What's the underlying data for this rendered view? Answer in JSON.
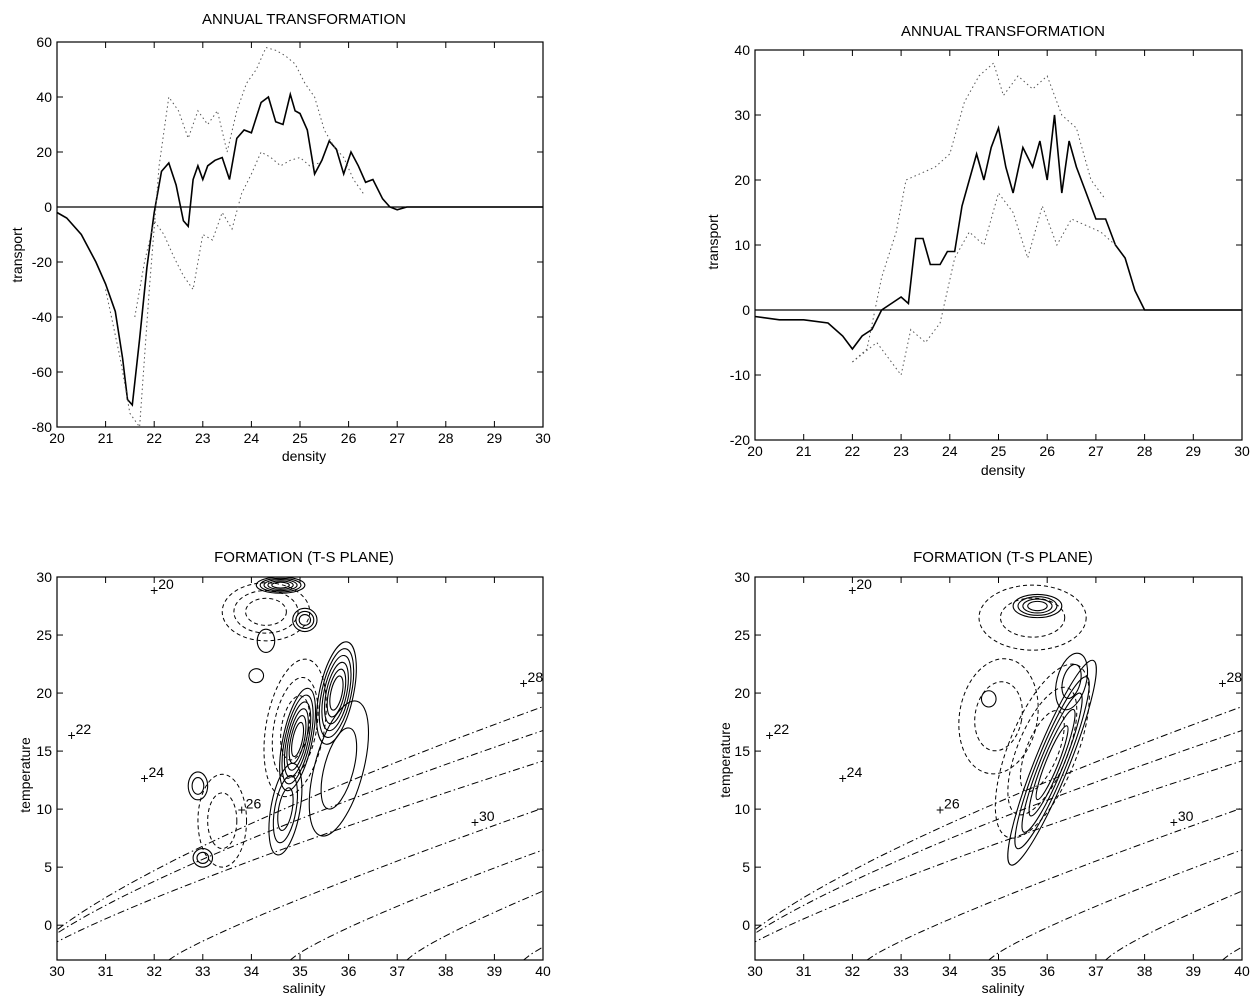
{
  "figure": {
    "panels": [
      {
        "title": "ANNUAL TRANSFORMATION",
        "xlabel": "density",
        "ylabel": "transport"
      },
      {
        "title": "ANNUAL TRANSFORMATION",
        "xlabel": "density",
        "ylabel": "transport"
      },
      {
        "title": "FORMATION (T-S PLANE)",
        "xlabel": "salinity",
        "ylabel": "temperature"
      },
      {
        "title": "FORMATION (T-S PLANE)",
        "xlabel": "salinity",
        "ylabel": "temperature"
      }
    ]
  },
  "chart_data": [
    {
      "type": "line",
      "title": "ANNUAL TRANSFORMATION",
      "xlabel": "density",
      "ylabel": "transport",
      "xlim": [
        20,
        30
      ],
      "ylim": [
        -80,
        60
      ],
      "xticks": [
        20,
        21,
        22,
        23,
        24,
        25,
        26,
        27,
        28,
        29,
        30
      ],
      "yticks": [
        -80,
        -60,
        -40,
        -20,
        0,
        20,
        40,
        60
      ],
      "grid": false,
      "zero_line": true,
      "series": [
        {
          "style": "solid",
          "x": [
            20,
            20.2,
            20.5,
            20.8,
            21.0,
            21.2,
            21.35,
            21.45,
            21.55,
            21.7,
            21.85,
            22.0,
            22.15,
            22.3,
            22.45,
            22.6,
            22.7,
            22.8,
            22.9,
            23.0,
            23.1,
            23.25,
            23.4,
            23.55,
            23.7,
            23.85,
            24.0,
            24.2,
            24.35,
            24.5,
            24.65,
            24.8,
            24.9,
            25.0,
            25.15,
            25.3,
            25.45,
            25.6,
            25.75,
            25.9,
            26.05,
            26.2,
            26.35,
            26.5,
            26.7,
            26.85,
            27.0,
            27.2,
            30.0
          ],
          "y": [
            -2,
            -4,
            -10,
            -20,
            -28,
            -38,
            -55,
            -70,
            -72,
            -48,
            -22,
            -2,
            13,
            16,
            8,
            -5,
            -7,
            10,
            15,
            10,
            15,
            17,
            18,
            10,
            25,
            28,
            27,
            38,
            40,
            31,
            30,
            41,
            35,
            34,
            28,
            12,
            17,
            24,
            21,
            12,
            20,
            15,
            9,
            10,
            3,
            0,
            -1,
            0,
            0
          ]
        },
        {
          "style": "dotted",
          "x": [
            21.0,
            21.3,
            21.5,
            21.7,
            21.9,
            22.1,
            22.3,
            22.5,
            22.7,
            22.9,
            23.1,
            23.3,
            23.5,
            23.7,
            23.9,
            24.1,
            24.3,
            24.5,
            24.7,
            24.9,
            25.1,
            25.3,
            25.5,
            25.7,
            25.9,
            26.1,
            26.3
          ],
          "y": [
            -30,
            -55,
            -75,
            -80,
            -30,
            15,
            40,
            35,
            25,
            35,
            30,
            35,
            20,
            35,
            45,
            50,
            58,
            57,
            55,
            52,
            45,
            40,
            28,
            22,
            18,
            10,
            5
          ]
        },
        {
          "style": "dotted",
          "x": [
            21.6,
            21.8,
            22.0,
            22.2,
            22.4,
            22.6,
            22.8,
            23.0,
            23.2,
            23.4,
            23.6,
            23.8,
            24.0,
            24.2,
            24.4,
            24.6,
            24.8,
            25.0,
            25.2,
            25.4
          ],
          "y": [
            -40,
            -20,
            -5,
            -10,
            -18,
            -25,
            -30,
            -10,
            -12,
            -2,
            -8,
            5,
            12,
            20,
            18,
            15,
            17,
            18,
            15,
            16
          ]
        }
      ]
    },
    {
      "type": "line",
      "title": "ANNUAL TRANSFORMATION",
      "xlabel": "density",
      "ylabel": "transport",
      "xlim": [
        20,
        30
      ],
      "ylim": [
        -20,
        40
      ],
      "xticks": [
        20,
        21,
        22,
        23,
        24,
        25,
        26,
        27,
        28,
        29,
        30
      ],
      "yticks": [
        -20,
        -10,
        0,
        10,
        20,
        30,
        40
      ],
      "grid": false,
      "zero_line": true,
      "series": [
        {
          "style": "solid",
          "x": [
            20,
            20.5,
            21.0,
            21.5,
            21.8,
            22.0,
            22.2,
            22.4,
            22.6,
            22.8,
            23.0,
            23.15,
            23.3,
            23.45,
            23.6,
            23.8,
            23.95,
            24.1,
            24.25,
            24.4,
            24.55,
            24.7,
            24.85,
            25.0,
            25.15,
            25.3,
            25.5,
            25.7,
            25.85,
            26.0,
            26.15,
            26.3,
            26.45,
            26.6,
            26.8,
            27.0,
            27.2,
            27.4,
            27.6,
            27.8,
            28.0,
            30.0
          ],
          "y": [
            -1,
            -1.5,
            -1.5,
            -2,
            -4,
            -6,
            -4,
            -3,
            0,
            1,
            2,
            1,
            11,
            11,
            7,
            7,
            9,
            9,
            16,
            20,
            24,
            20,
            25,
            28,
            22,
            18,
            25,
            22,
            26,
            20,
            30,
            18,
            26,
            22,
            18,
            14,
            14,
            10,
            8,
            3,
            0,
            0
          ]
        },
        {
          "style": "dotted",
          "x": [
            22.0,
            22.3,
            22.6,
            22.9,
            23.1,
            23.4,
            23.7,
            24.0,
            24.3,
            24.6,
            24.9,
            25.1,
            25.4,
            25.7,
            26.0,
            26.3,
            26.6,
            26.9,
            27.2
          ],
          "y": [
            -8,
            -6,
            5,
            12,
            20,
            21,
            22,
            24,
            32,
            36,
            38,
            33,
            36,
            34,
            36,
            30,
            28,
            20,
            17
          ]
        },
        {
          "style": "dotted",
          "x": [
            22.0,
            22.5,
            23.0,
            23.2,
            23.5,
            23.8,
            24.1,
            24.4,
            24.7,
            25.0,
            25.3,
            25.6,
            25.9,
            26.2,
            26.5,
            26.8,
            27.1,
            27.4
          ],
          "y": [
            -8,
            -5,
            -10,
            -3,
            -5,
            -2,
            8,
            12,
            10,
            18,
            15,
            8,
            16,
            10,
            14,
            13,
            12,
            10
          ]
        }
      ]
    },
    {
      "type": "contour",
      "title": "FORMATION (T-S PLANE)",
      "xlabel": "salinity",
      "ylabel": "temperature",
      "xlim": [
        30,
        40
      ],
      "ylim": [
        -3,
        30
      ],
      "xticks": [
        30,
        31,
        32,
        33,
        34,
        35,
        36,
        37,
        38,
        39,
        40
      ],
      "yticks": [
        0,
        5,
        10,
        15,
        20,
        25,
        30
      ],
      "isopycnal_labels": [
        "20",
        "22",
        "24",
        "26",
        "28",
        "30"
      ],
      "isopycnal_anchor_points": [
        {
          "label": "20",
          "s": 32.0,
          "t": 28.8
        },
        {
          "label": "22",
          "s": 30.3,
          "t": 16.3
        },
        {
          "label": "24",
          "s": 31.8,
          "t": 12.6
        },
        {
          "label": "26",
          "s": 33.8,
          "t": 9.9
        },
        {
          "label": "28",
          "s": 39.6,
          "t": 20.8
        },
        {
          "label": "30",
          "s": 38.6,
          "t": 8.8
        }
      ]
    },
    {
      "type": "contour",
      "title": "FORMATION (T-S PLANE)",
      "xlabel": "salinity",
      "ylabel": "temperature",
      "xlim": [
        30,
        40
      ],
      "ylim": [
        -3,
        30
      ],
      "xticks": [
        30,
        31,
        32,
        33,
        34,
        35,
        36,
        37,
        38,
        39,
        40
      ],
      "yticks": [
        0,
        5,
        10,
        15,
        20,
        25,
        30
      ],
      "isopycnal_labels": [
        "20",
        "22",
        "24",
        "26",
        "28",
        "30"
      ],
      "isopycnal_anchor_points": [
        {
          "label": "20",
          "s": 32.0,
          "t": 28.8
        },
        {
          "label": "22",
          "s": 30.3,
          "t": 16.3
        },
        {
          "label": "24",
          "s": 31.8,
          "t": 12.6
        },
        {
          "label": "26",
          "s": 33.8,
          "t": 9.9
        },
        {
          "label": "28",
          "s": 39.6,
          "t": 20.8
        },
        {
          "label": "30",
          "s": 38.6,
          "t": 8.8
        }
      ]
    }
  ]
}
